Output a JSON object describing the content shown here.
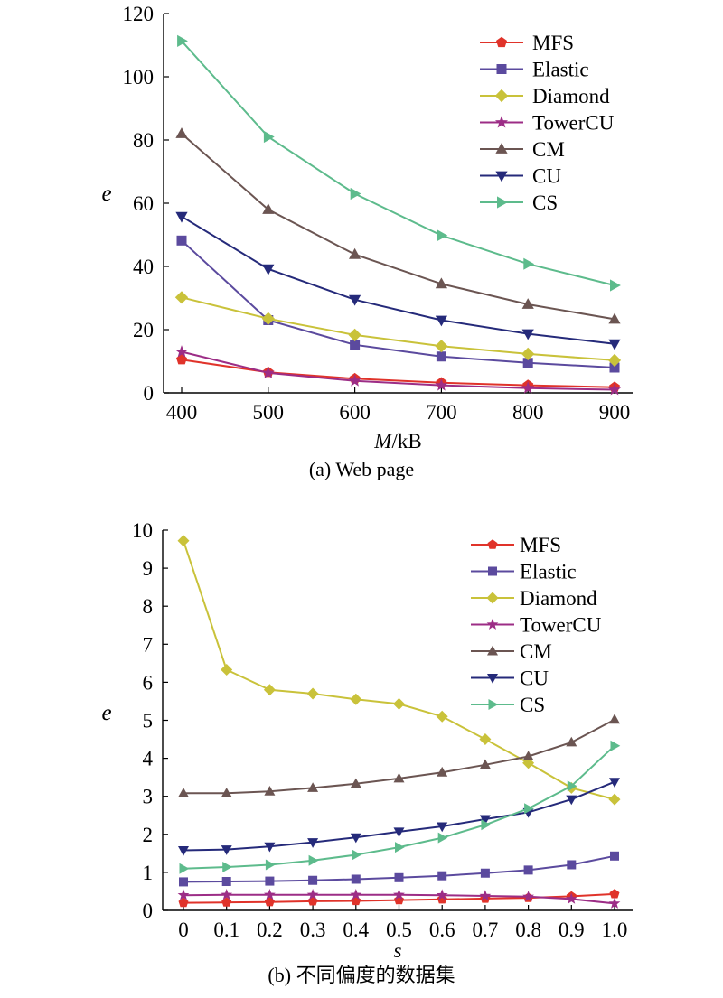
{
  "captions": {
    "a": "(a) Web page",
    "b": "(b) 不同偏度的数据集"
  },
  "chart_data": [
    {
      "type": "line",
      "title": "",
      "xlabel": "M/kB",
      "ylabel": "e",
      "x": [
        400,
        500,
        600,
        700,
        800,
        900
      ],
      "xticks": [
        "400",
        "500",
        "600",
        "700",
        "800",
        "900"
      ],
      "xlim": [
        400,
        900
      ],
      "ylim": [
        0,
        120
      ],
      "yticks": [
        "0",
        "20",
        "40",
        "60",
        "80",
        "100",
        "120"
      ],
      "legend_position": "top-right",
      "grid": false,
      "series": [
        {
          "name": "MFS",
          "color": "#e0332a",
          "marker": "pentagon",
          "values": [
            10.5,
            6.5,
            4.5,
            3.2,
            2.4,
            1.8
          ]
        },
        {
          "name": "Elastic",
          "color": "#5b4a9e",
          "marker": "square",
          "values": [
            48.2,
            23.0,
            15.2,
            11.5,
            9.5,
            8.0
          ]
        },
        {
          "name": "Diamond",
          "color": "#c9c23a",
          "marker": "diamond",
          "values": [
            30.2,
            23.5,
            18.3,
            14.8,
            12.3,
            10.3
          ]
        },
        {
          "name": "TowerCU",
          "color": "#9c2d86",
          "marker": "star",
          "values": [
            13.0,
            6.3,
            3.8,
            2.4,
            1.5,
            1.0
          ]
        },
        {
          "name": "CM",
          "color": "#6b5552",
          "marker": "triangle-up",
          "values": [
            82.0,
            58.0,
            43.8,
            34.5,
            28.0,
            23.3
          ]
        },
        {
          "name": "CU",
          "color": "#252a7a",
          "marker": "triangle-down",
          "values": [
            55.8,
            39.2,
            29.5,
            23.0,
            18.7,
            15.5
          ]
        },
        {
          "name": "CS",
          "color": "#5dbb8c",
          "marker": "triangle-right",
          "values": [
            111.3,
            81.0,
            63.0,
            49.8,
            40.8,
            34.0
          ]
        }
      ]
    },
    {
      "type": "line",
      "title": "",
      "xlabel": "s",
      "ylabel": "e",
      "x": [
        0,
        0.1,
        0.2,
        0.3,
        0.4,
        0.5,
        0.6,
        0.7,
        0.8,
        0.9,
        1.0
      ],
      "xticks": [
        "0",
        "0.1",
        "0.2",
        "0.3",
        "0.4",
        "0.5",
        "0.6",
        "0.7",
        "0.8",
        "0.9",
        "1.0"
      ],
      "xlim": [
        0,
        1.0
      ],
      "ylim": [
        0,
        10
      ],
      "yticks": [
        "0",
        "1",
        "2",
        "3",
        "4",
        "5",
        "6",
        "7",
        "8",
        "9",
        "10"
      ],
      "legend_position": "top-right",
      "grid": false,
      "series": [
        {
          "name": "MFS",
          "color": "#e0332a",
          "marker": "pentagon",
          "values": [
            0.2,
            0.21,
            0.22,
            0.24,
            0.25,
            0.27,
            0.29,
            0.31,
            0.33,
            0.37,
            0.43
          ]
        },
        {
          "name": "Elastic",
          "color": "#5b4a9e",
          "marker": "square",
          "values": [
            0.75,
            0.76,
            0.77,
            0.79,
            0.82,
            0.86,
            0.91,
            0.98,
            1.06,
            1.2,
            1.43
          ]
        },
        {
          "name": "Diamond",
          "color": "#c9c23a",
          "marker": "diamond",
          "values": [
            9.72,
            6.33,
            5.8,
            5.7,
            5.55,
            5.43,
            5.1,
            4.5,
            3.88,
            3.22,
            2.92
          ]
        },
        {
          "name": "TowerCU",
          "color": "#9c2d86",
          "marker": "star",
          "values": [
            0.4,
            0.41,
            0.41,
            0.41,
            0.41,
            0.41,
            0.4,
            0.38,
            0.36,
            0.3,
            0.18
          ]
        },
        {
          "name": "CM",
          "color": "#6b5552",
          "marker": "triangle-up",
          "values": [
            3.08,
            3.08,
            3.13,
            3.22,
            3.33,
            3.47,
            3.63,
            3.83,
            4.05,
            4.42,
            5.02
          ]
        },
        {
          "name": "CU",
          "color": "#252a7a",
          "marker": "triangle-down",
          "values": [
            1.58,
            1.6,
            1.68,
            1.79,
            1.92,
            2.07,
            2.21,
            2.4,
            2.58,
            2.92,
            3.38
          ]
        },
        {
          "name": "CS",
          "color": "#5dbb8c",
          "marker": "triangle-right",
          "values": [
            1.1,
            1.14,
            1.2,
            1.31,
            1.46,
            1.66,
            1.91,
            2.25,
            2.68,
            3.27,
            4.33
          ]
        }
      ]
    }
  ]
}
